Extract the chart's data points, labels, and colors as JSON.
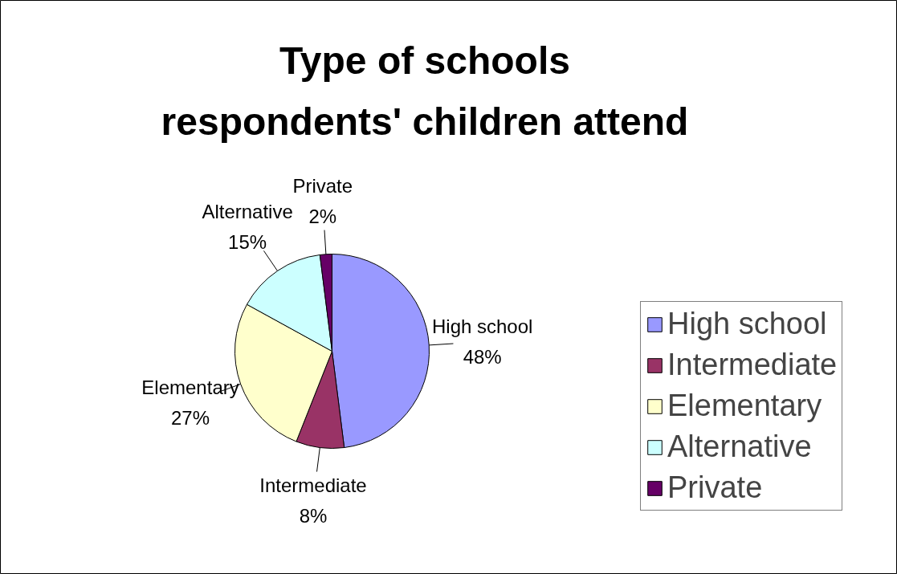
{
  "chart_data": {
    "type": "pie",
    "title": "Type of schools respondents' children attend",
    "categories": [
      "High school",
      "Intermediate",
      "Elementary",
      "Alternative",
      "Private"
    ],
    "values": [
      48,
      8,
      27,
      15,
      2
    ],
    "colors": [
      "#9999ff",
      "#993366",
      "#ffffcc",
      "#ccffff",
      "#660066"
    ],
    "value_labels": [
      "48%",
      "8%",
      "27%",
      "15%",
      "2%"
    ],
    "legend": "right"
  }
}
